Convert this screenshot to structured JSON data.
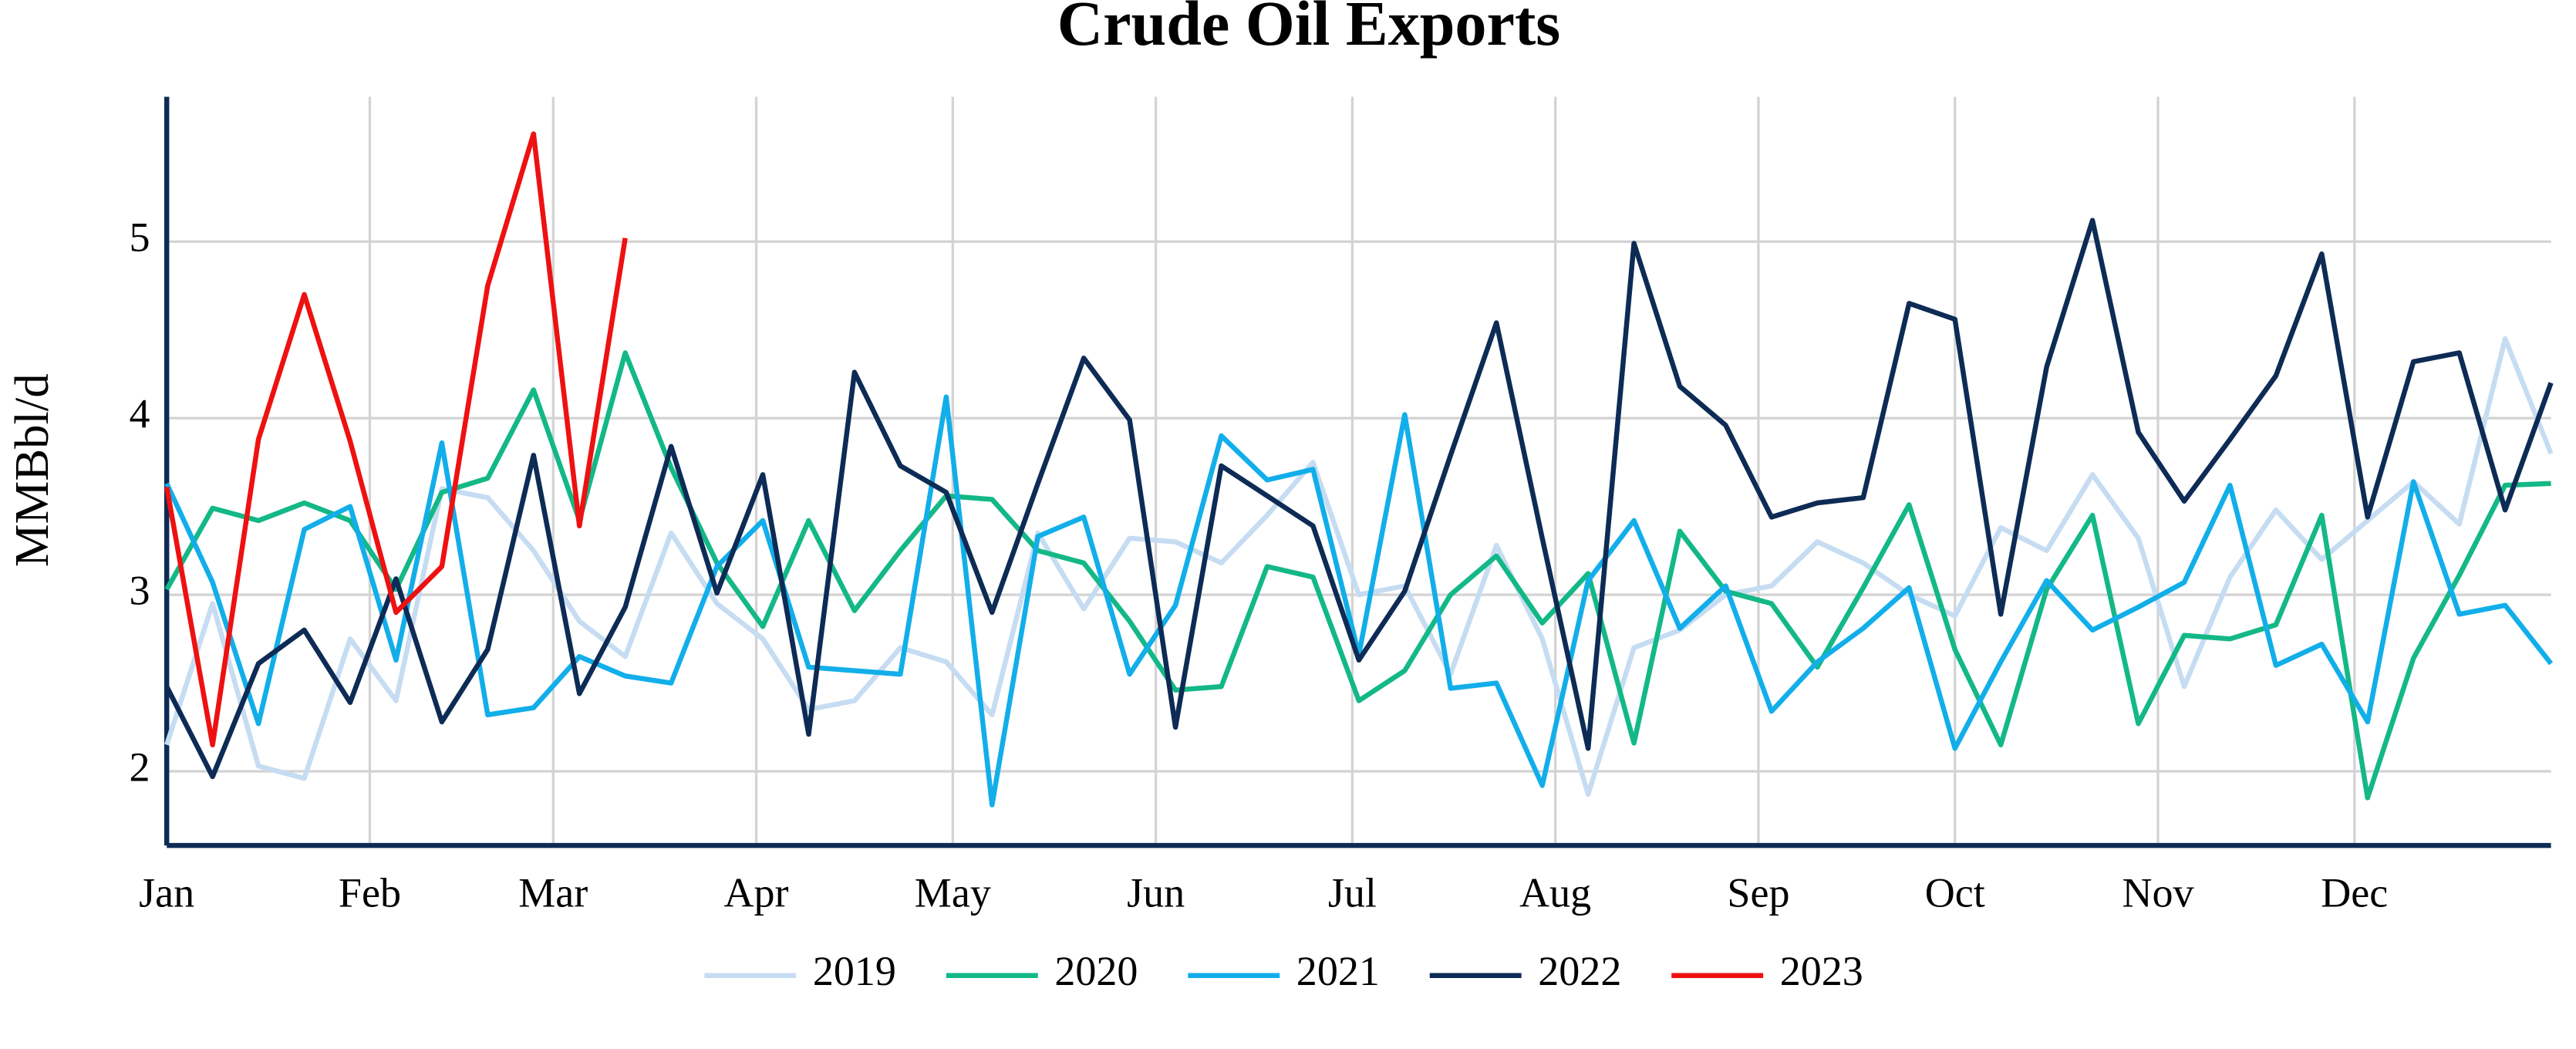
{
  "chart_data": {
    "type": "line",
    "title": "Crude Oil Exports",
    "y_label": "MMBbl/d",
    "x": [
      0,
      7,
      14,
      21,
      28,
      35,
      42,
      49,
      56,
      63,
      70,
      77,
      84,
      91,
      98,
      105,
      112,
      119,
      126,
      133,
      140,
      147,
      154,
      161,
      168,
      175,
      182,
      189,
      196,
      203,
      210,
      217,
      224,
      231,
      238,
      245,
      252,
      259,
      266,
      273,
      280,
      287,
      294,
      301,
      308,
      315,
      322,
      329,
      336,
      343,
      350,
      357,
      364
    ],
    "xlim": [
      0,
      364
    ],
    "xticks": [
      {
        "value": 0,
        "label": "Jan"
      },
      {
        "value": 31,
        "label": "Feb"
      },
      {
        "value": 59,
        "label": "Mar"
      },
      {
        "value": 90,
        "label": "Apr"
      },
      {
        "value": 120,
        "label": "May"
      },
      {
        "value": 151,
        "label": "Jun"
      },
      {
        "value": 181,
        "label": "Jul"
      },
      {
        "value": 212,
        "label": "Aug"
      },
      {
        "value": 243,
        "label": "Sep"
      },
      {
        "value": 273,
        "label": "Oct"
      },
      {
        "value": 304,
        "label": "Nov"
      },
      {
        "value": 334,
        "label": "Dec"
      }
    ],
    "ylim": [
      1.58,
      5.82
    ],
    "yticks": [
      2,
      3,
      4,
      5
    ],
    "grid": true,
    "legend": "bottom",
    "series": [
      {
        "name": "2019",
        "color": "#c6dcf2",
        "values": [
          2.15,
          2.95,
          2.03,
          1.96,
          2.75,
          2.4,
          3.6,
          3.55,
          3.25,
          2.85,
          2.65,
          3.35,
          2.95,
          2.75,
          2.35,
          2.4,
          2.7,
          2.62,
          2.32,
          3.35,
          2.92,
          3.32,
          3.3,
          3.18,
          3.45,
          3.75,
          3.0,
          3.05,
          2.55,
          3.28,
          2.75,
          1.87,
          2.7,
          2.8,
          3.0,
          3.05,
          3.3,
          3.18,
          3.0,
          2.88,
          3.38,
          3.25,
          3.68,
          3.32,
          2.48,
          3.1,
          3.48,
          3.2,
          3.42,
          3.64,
          3.4,
          4.45,
          3.8
        ]
      },
      {
        "name": "2020",
        "color": "#13b886",
        "values": [
          3.03,
          3.49,
          3.42,
          3.52,
          3.42,
          3.03,
          3.58,
          3.66,
          4.16,
          3.42,
          4.37,
          3.72,
          3.18,
          2.82,
          3.42,
          2.91,
          3.25,
          3.56,
          3.54,
          3.25,
          3.18,
          2.85,
          2.46,
          2.48,
          3.16,
          3.1,
          2.4,
          2.57,
          3.0,
          3.22,
          2.84,
          3.12,
          2.16,
          3.36,
          3.02,
          2.95,
          2.59,
          3.04,
          3.51,
          2.69,
          2.15,
          3.03,
          3.45,
          2.27,
          2.77,
          2.75,
          2.83,
          3.45,
          1.85,
          2.64,
          3.11,
          3.62,
          3.63
        ]
      },
      {
        "name": "2021",
        "color": "#12aeea",
        "values": [
          3.63,
          3.07,
          2.27,
          3.37,
          3.5,
          2.63,
          3.86,
          2.32,
          2.36,
          2.65,
          2.54,
          2.5,
          3.16,
          3.42,
          2.59,
          2.57,
          2.55,
          4.12,
          1.81,
          3.33,
          3.44,
          2.55,
          2.94,
          3.9,
          3.65,
          3.71,
          2.66,
          4.02,
          2.47,
          2.5,
          1.92,
          3.08,
          3.42,
          2.81,
          3.05,
          2.34,
          2.62,
          2.81,
          3.04,
          2.13,
          2.62,
          3.08,
          2.8,
          2.93,
          3.07,
          3.62,
          2.6,
          2.72,
          2.28,
          3.64,
          2.89,
          2.94,
          2.61
        ]
      },
      {
        "name": "2022",
        "color": "#0d2b55",
        "values": [
          2.48,
          1.97,
          2.61,
          2.8,
          2.39,
          3.09,
          2.28,
          2.69,
          3.79,
          2.44,
          2.93,
          3.84,
          3.01,
          3.68,
          2.21,
          4.26,
          3.73,
          3.58,
          2.9,
          3.63,
          4.34,
          3.99,
          2.25,
          3.73,
          3.56,
          3.39,
          2.63,
          3.02,
          3.79,
          4.54,
          3.32,
          2.13,
          4.99,
          4.18,
          3.96,
          3.44,
          3.52,
          3.55,
          4.65,
          4.56,
          2.89,
          4.29,
          5.12,
          3.92,
          3.53,
          3.88,
          4.24,
          4.93,
          3.44,
          4.32,
          4.37,
          3.48,
          4.2
        ]
      },
      {
        "name": "2023",
        "color": "#ee1111",
        "values": [
          3.61,
          2.15,
          3.88,
          4.7,
          3.87,
          2.9,
          3.16,
          4.75,
          5.61,
          3.39,
          5.02,
          null,
          null,
          null,
          null,
          null,
          null,
          null,
          null,
          null,
          null,
          null,
          null,
          null,
          null,
          null,
          null,
          null,
          null,
          null,
          null,
          null,
          null,
          null,
          null,
          null,
          null,
          null,
          null,
          null,
          null,
          null,
          null,
          null,
          null,
          null,
          null,
          null,
          null,
          null,
          null,
          null,
          null
        ]
      }
    ]
  }
}
